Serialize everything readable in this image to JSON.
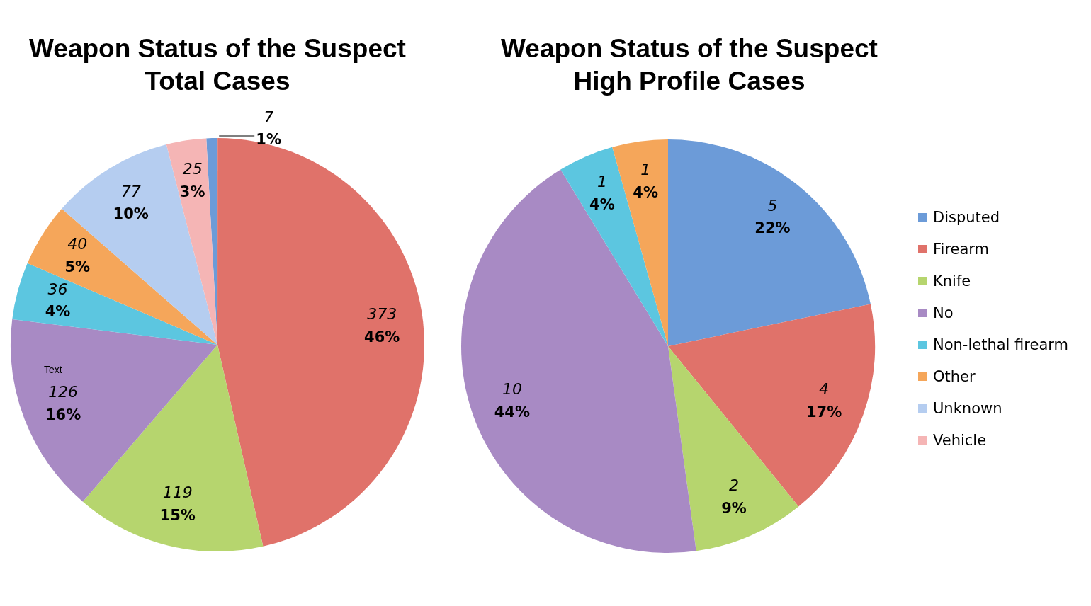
{
  "chart_data": [
    {
      "type": "pie",
      "title": "Weapon Status of the Suspect",
      "subtitle": "Total Cases",
      "categories": [
        null,
        null,
        null,
        null,
        null,
        null,
        null,
        null
      ],
      "values": [
        7,
        373,
        119,
        126,
        36,
        40,
        77,
        25
      ],
      "data_labels": true,
      "colors": [
        "#6c9bd8",
        "#e0726a",
        "#b6d56e",
        "#a88ac4",
        "#5cc6e0",
        "#f5a65a",
        "#b5cdf0",
        "#f5b5b5"
      ],
      "annotations": [
        "1%",
        "46%",
        "15%",
        "16%",
        "4%",
        "5%",
        "10%",
        "3%",
        "Text"
      ]
    },
    {
      "type": "pie",
      "title": "Weapon Status of the Suspect",
      "subtitle": "High Profile Cases",
      "categories": [
        "Disputed",
        "Firearm",
        "Knife",
        "No",
        "Non-lethal firearm",
        "Other",
        "Unknown",
        "Vehicle"
      ],
      "values": [
        5,
        4,
        2,
        10,
        1,
        1,
        0,
        0
      ],
      "data_labels": true,
      "colors": [
        "#6c9bd8",
        "#e0726a",
        "#b6d56e",
        "#a88ac4",
        "#5cc6e0",
        "#f5a65a",
        "#b5cdf0",
        "#f5b5b5"
      ],
      "annotations": [
        {
          "text": "22%",
          "x": "Disputed"
        },
        {
          "text": "17%",
          "x": "Firearm"
        },
        {
          "text": "9%",
          "x": "Knife"
        },
        {
          "text": "44%",
          "x": "No"
        },
        {
          "text": "4%",
          "x": "Non-lethal firearm"
        },
        {
          "text": "4%",
          "x": "Other"
        }
      ],
      "legend": "right"
    }
  ]
}
